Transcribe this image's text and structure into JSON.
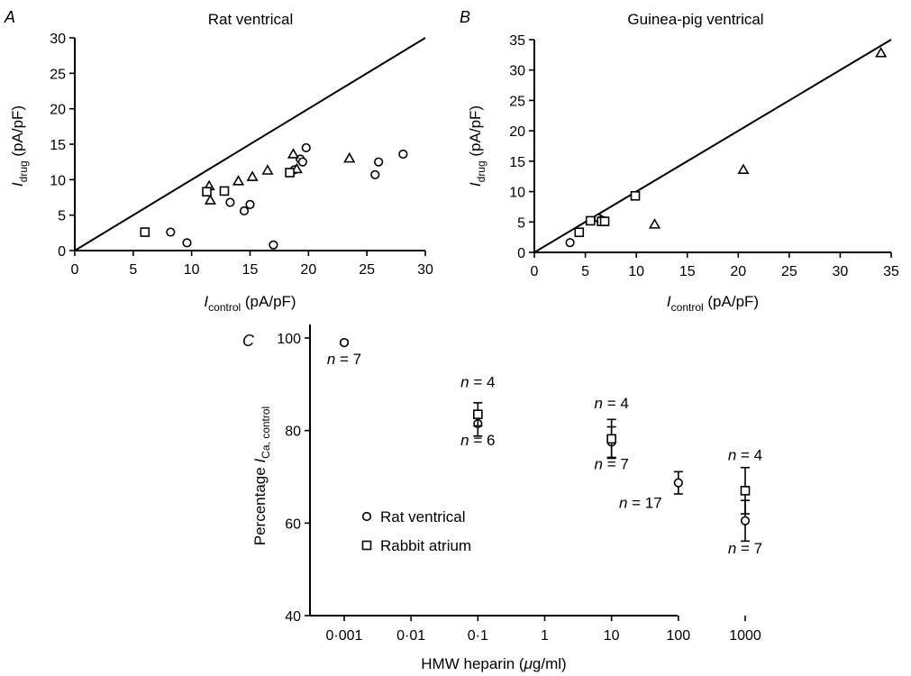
{
  "chart_data": [
    {
      "type": "scatter",
      "panel_label": "A",
      "title": "Rat ventrical",
      "xlabel": {
        "main": "I",
        "sub": "control",
        "rest": " (pA/pF)"
      },
      "ylabel": {
        "main": "I",
        "sub": "drug",
        "rest": " (pA/pF)"
      },
      "xlim": [
        0,
        30
      ],
      "ylim": [
        0,
        30
      ],
      "xticks": [
        "0",
        "5",
        "10",
        "15",
        "20",
        "25",
        "30"
      ],
      "yticks": [
        "0",
        "5",
        "10",
        "15",
        "20",
        "25",
        "30"
      ],
      "identity_line": [
        [
          0,
          0
        ],
        [
          30,
          30
        ]
      ],
      "series": [
        {
          "marker": "circle",
          "points": [
            [
              8.2,
              2.6
            ],
            [
              9.6,
              1.1
            ],
            [
              13.3,
              6.8
            ],
            [
              14.5,
              5.6
            ],
            [
              15.0,
              6.5
            ],
            [
              17.0,
              0.8
            ],
            [
              18.8,
              11.4
            ],
            [
              19.3,
              12.9
            ],
            [
              19.5,
              12.5
            ],
            [
              19.8,
              14.5
            ],
            [
              25.7,
              10.7
            ],
            [
              26.0,
              12.5
            ],
            [
              28.1,
              13.6
            ]
          ]
        },
        {
          "marker": "triangle",
          "points": [
            [
              11.5,
              9.1
            ],
            [
              11.6,
              7.1
            ],
            [
              14.0,
              9.8
            ],
            [
              15.2,
              10.4
            ],
            [
              16.5,
              11.3
            ],
            [
              18.7,
              13.6
            ],
            [
              19.0,
              11.5
            ],
            [
              23.5,
              13.0
            ]
          ]
        },
        {
          "marker": "square",
          "points": [
            [
              6.0,
              2.6
            ],
            [
              11.3,
              8.3
            ],
            [
              12.8,
              8.4
            ],
            [
              18.4,
              11.0
            ]
          ]
        }
      ]
    },
    {
      "type": "scatter",
      "panel_label": "B",
      "title": "Guinea-pig ventrical",
      "xlabel": {
        "main": "I",
        "sub": "control",
        "rest": " (pA/pF)"
      },
      "ylabel": {
        "main": "I",
        "sub": "drug",
        "rest": " (pA/pF)"
      },
      "xlim": [
        0,
        35
      ],
      "ylim": [
        0,
        35
      ],
      "xticks": [
        "0",
        "5",
        "10",
        "15",
        "20",
        "25",
        "30",
        "35"
      ],
      "yticks": [
        "0",
        "5",
        "10",
        "15",
        "20",
        "25",
        "30",
        "35"
      ],
      "identity_line": [
        [
          0,
          0
        ],
        [
          35,
          35
        ]
      ],
      "series": [
        {
          "marker": "circle",
          "points": [
            [
              3.5,
              1.6
            ],
            [
              6.3,
              5.6
            ],
            [
              6.6,
              5.3
            ]
          ]
        },
        {
          "marker": "triangle",
          "points": [
            [
              11.8,
              4.6
            ],
            [
              20.5,
              13.6
            ],
            [
              34.0,
              32.8
            ]
          ]
        },
        {
          "marker": "square",
          "points": [
            [
              4.4,
              3.3
            ],
            [
              5.5,
              5.2
            ],
            [
              6.6,
              5.1
            ],
            [
              6.9,
              5.1
            ],
            [
              9.9,
              9.3
            ]
          ]
        }
      ]
    },
    {
      "type": "scatter",
      "panel_label": "C",
      "xlabel": {
        "main": "HMW heparin (",
        "greek": "μ",
        "rest": "g/ml)"
      },
      "ylabel": {
        "main": "Percentage ",
        "italic": "I",
        "sub": "Ca, control"
      },
      "x_scale": "log",
      "x": [
        0.001,
        0.01,
        0.1,
        1,
        10,
        100,
        1000
      ],
      "xticks": [
        "0·001",
        "0·01",
        "0·1",
        "1",
        "10",
        "100",
        "1000"
      ],
      "ylim": [
        40,
        100
      ],
      "yticks": [
        "40",
        "60",
        "80",
        "100"
      ],
      "legend": {
        "position": "center-left",
        "entries": [
          {
            "marker": "circle",
            "label": "Rat ventrical"
          },
          {
            "marker": "square",
            "label": "Rabbit atrium"
          }
        ]
      },
      "series": [
        {
          "marker": "circle",
          "points": [
            {
              "x": 0.001,
              "y": 99.0,
              "err": 0.3,
              "n": "n = 7"
            },
            {
              "x": 0.1,
              "y": 81.5,
              "err": 2.7,
              "n": "n = 6"
            },
            {
              "x": 10,
              "y": 77.5,
              "err": 3.3,
              "n": "n = 7"
            },
            {
              "x": 100,
              "y": 68.7,
              "err": 2.4,
              "n": "n = 17"
            },
            {
              "x": 1000,
              "y": 60.5,
              "err": 4.4,
              "n": "n = 7"
            }
          ]
        },
        {
          "marker": "square",
          "points": [
            {
              "x": 0.1,
              "y": 83.5,
              "err": 2.5,
              "n": "n = 4"
            },
            {
              "x": 10,
              "y": 78.2,
              "err": 4.2,
              "n": "n = 4"
            },
            {
              "x": 1000,
              "y": 67.0,
              "err": 5.0,
              "n": "n = 4"
            }
          ]
        }
      ]
    }
  ]
}
